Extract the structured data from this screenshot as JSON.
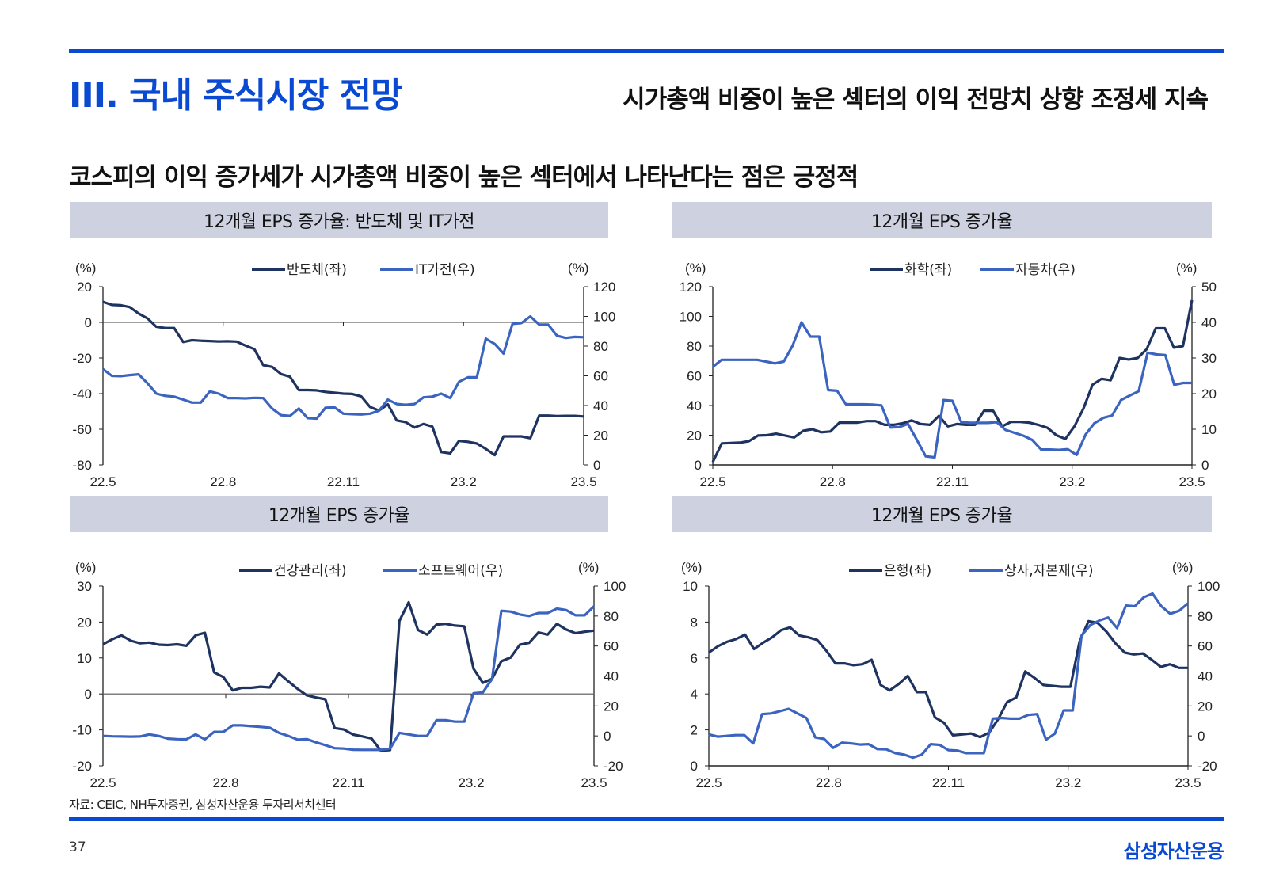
{
  "header": {
    "section_title": "III. 국내 주식시장 전망",
    "section_subtitle": "시가총액 비중이 높은 섹터의 이익 전망치 상향 조정세 지속",
    "headline": "코스피의 이익 증가세가 시가총액 비중이 높은 섹터에서 나타난다는 점은 긍정적"
  },
  "colors": {
    "accent": "#0a49d1",
    "panel": "#cdd1e0",
    "series_dark": "#1f3360",
    "series_light": "#3b63c0",
    "zero_line": "#808080"
  },
  "footer": {
    "source": "자료: CEIC, NH투자증권, 삼성자산운용 투자리서치센터",
    "page_number": "37",
    "brand": "삼성자산운용"
  },
  "chart_data": [
    {
      "type": "line",
      "title": "12개월 EPS 증가율: 반도체 및 IT가전",
      "ylabel_left": "(%)",
      "ylabel_right": "(%)",
      "x_ticks": [
        "22.5",
        "22.8",
        "22.11",
        "23.2",
        "23.5"
      ],
      "ylim_left": [
        -80,
        20
      ],
      "yticks_left": [
        20,
        0,
        -20,
        -40,
        -60,
        -80
      ],
      "ylim_right": [
        0,
        120
      ],
      "yticks_right": [
        120,
        100,
        80,
        60,
        40,
        20,
        0
      ],
      "zero_line": "left",
      "series": [
        {
          "name": "반도체(좌)",
          "axis": "left",
          "color": "dark",
          "values": [
            11.5,
            9.8,
            9.6,
            8.6,
            5,
            2.2,
            -2.5,
            -3.2,
            -3.2,
            -11,
            -10,
            -10.3,
            -10.5,
            -10.7,
            -10.6,
            -10.8,
            -13,
            -15,
            -24,
            -25,
            -29,
            -30.5,
            -38,
            -38,
            -38.2,
            -39,
            -39.5,
            -40,
            -40.2,
            -41.5,
            -47.5,
            -49.5,
            -46,
            -55,
            -56,
            -59,
            -57,
            -58.5,
            -72.8,
            -73.5,
            -66.5,
            -67,
            -68,
            -71,
            -74.5,
            -64,
            -64,
            -64,
            -65,
            -52.3,
            -52.3,
            -52.6,
            -52.5,
            -52.5,
            -52.8
          ]
        },
        {
          "name": "IT가전(우)",
          "axis": "right",
          "color": "light",
          "values": [
            64.5,
            60,
            59.8,
            60.5,
            61,
            55,
            48,
            46.5,
            46,
            44,
            42,
            42,
            49.5,
            48,
            45,
            45,
            44.8,
            45.2,
            45,
            38,
            33.5,
            33,
            38,
            31.5,
            31.2,
            38.5,
            38.8,
            34.5,
            34.2,
            34,
            34.5,
            36.5,
            44,
            41,
            40.5,
            41,
            45.5,
            46,
            48,
            45,
            56,
            59,
            59,
            85,
            81.5,
            75,
            95,
            95.5,
            100,
            94.5,
            94.5,
            87,
            85.5,
            86.2,
            86
          ]
        }
      ]
    },
    {
      "type": "line",
      "title": "12개월 EPS 증가율",
      "ylabel_left": "(%)",
      "ylabel_right": "(%)",
      "x_ticks": [
        "22.5",
        "22.8",
        "22.11",
        "23.2",
        "23.5"
      ],
      "ylim_left": [
        0,
        120
      ],
      "yticks_left": [
        120,
        100,
        80,
        60,
        40,
        20,
        0
      ],
      "ylim_right": [
        0,
        50
      ],
      "yticks_right": [
        50,
        40,
        30,
        20,
        10,
        0
      ],
      "series": [
        {
          "name": "화학(좌)",
          "axis": "left",
          "color": "dark",
          "values": [
            2,
            14.5,
            14.8,
            15,
            16,
            19.8,
            20,
            21,
            19.8,
            18.5,
            23,
            24,
            22,
            22.5,
            28.5,
            28.5,
            28.5,
            29.5,
            29.5,
            27,
            27,
            28,
            30,
            27.5,
            27,
            33,
            26,
            27.5,
            27,
            27,
            36.5,
            36.5,
            26,
            29,
            29,
            28.5,
            27,
            25,
            20,
            17.5,
            26,
            38,
            54,
            58,
            57,
            72,
            71,
            72,
            78,
            92,
            92,
            79,
            80,
            111
          ]
        },
        {
          "name": "자동차(우)",
          "axis": "right",
          "color": "light",
          "values": [
            27.5,
            29.5,
            29.5,
            29.5,
            29.5,
            29.5,
            29,
            28.5,
            29,
            33.5,
            40,
            36,
            36,
            21,
            20.8,
            17,
            17,
            17,
            16.9,
            16.7,
            10.5,
            10.6,
            11.5,
            7,
            2.4,
            2.1,
            18.2,
            18,
            12,
            11.8,
            11.8,
            11.8,
            12,
            9.8,
            9,
            8.2,
            7,
            4.3,
            4.3,
            4.2,
            4.4,
            2.8,
            8.5,
            11.7,
            13.2,
            13.9,
            18.2,
            19.5,
            20.7,
            31.5,
            31,
            30.8,
            22.5,
            23,
            23
          ]
        }
      ]
    },
    {
      "type": "line",
      "title": "12개월 EPS 증가율",
      "ylabel_left": "(%)",
      "ylabel_right": "(%)",
      "x_ticks": [
        "22.5",
        "22.8",
        "22.11",
        "23.2",
        "23.5"
      ],
      "ylim_left": [
        -20,
        30
      ],
      "yticks_left": [
        30,
        20,
        10,
        0,
        -10,
        -20
      ],
      "ylim_right": [
        -20,
        100
      ],
      "yticks_right": [
        100,
        80,
        60,
        40,
        20,
        0,
        -20
      ],
      "zero_line": "left",
      "series": [
        {
          "name": "건강관리(좌)",
          "axis": "left",
          "color": "dark",
          "values": [
            13.8,
            15.2,
            16.3,
            14.8,
            14.1,
            14.3,
            13.7,
            13.6,
            13.8,
            13.4,
            16.3,
            17,
            6,
            4.7,
            1,
            1.7,
            1.7,
            2,
            1.8,
            5.7,
            3.5,
            1.4,
            -0.4,
            -1,
            -1.5,
            -9.5,
            -9.9,
            -11.3,
            -11.8,
            -12.4,
            -15.8,
            -15.6,
            20.3,
            25.5,
            17.8,
            16.5,
            19.3,
            19.5,
            19,
            18.8,
            7,
            3.1,
            4.2,
            9.1,
            10.1,
            13.7,
            14.2,
            17.1,
            16.5,
            19.5,
            17.9,
            16.9,
            17.3,
            17.6
          ]
        },
        {
          "name": "소프트웨어(우)",
          "axis": "right",
          "color": "light",
          "values": [
            0,
            -0.3,
            -0.4,
            -0.5,
            -0.4,
            1,
            0,
            -1.8,
            -2.2,
            -2.3,
            1,
            -2.3,
            2.7,
            2.7,
            7,
            7,
            6.5,
            6,
            5.5,
            2,
            0,
            -2.5,
            -2.2,
            -4.3,
            -6.2,
            -8.2,
            -8.5,
            -9.2,
            -9.3,
            -9.3,
            -9.3,
            -8.5,
            2,
            1,
            0,
            0,
            10.5,
            10.5,
            9.5,
            9.5,
            28.5,
            29,
            38,
            83.5,
            83,
            81,
            80,
            82,
            82,
            85,
            84,
            80.5,
            80.5,
            86.5
          ]
        }
      ]
    },
    {
      "type": "line",
      "title": "12개월 EPS 증가율",
      "ylabel_left": "(%)",
      "ylabel_right": "(%)",
      "x_ticks": [
        "22.5",
        "22.8",
        "22.11",
        "23.2",
        "23.5"
      ],
      "ylim_left": [
        0,
        10
      ],
      "yticks_left": [
        10,
        8,
        6,
        4,
        2,
        0
      ],
      "ylim_right": [
        -20,
        100
      ],
      "yticks_right": [
        100,
        80,
        60,
        40,
        20,
        0,
        -20
      ],
      "series": [
        {
          "name": "은행(좌)",
          "axis": "left",
          "color": "dark",
          "values": [
            6.3,
            6.65,
            6.9,
            7.05,
            7.3,
            6.5,
            6.85,
            7.15,
            7.55,
            7.7,
            7.25,
            7.15,
            7,
            6.4,
            5.7,
            5.7,
            5.6,
            5.65,
            5.9,
            4.5,
            4.2,
            4.55,
            5,
            4.1,
            4.1,
            2.7,
            2.4,
            1.7,
            1.75,
            1.8,
            1.6,
            1.85,
            2.6,
            3.55,
            3.8,
            5.25,
            4.9,
            4.5,
            4.45,
            4.4,
            4.4,
            6.9,
            8.05,
            7.95,
            7.45,
            6.8,
            6.3,
            6.2,
            6.25,
            5.9,
            5.5,
            5.65,
            5.45,
            5.45
          ]
        },
        {
          "name": "상사,자본재(우)",
          "axis": "right",
          "color": "light",
          "values": [
            1,
            -0.5,
            0,
            0.5,
            0.5,
            -5,
            14.5,
            15,
            16.5,
            18,
            15,
            12,
            -1,
            -2,
            -8,
            -4.5,
            -5,
            -5.8,
            -5.5,
            -8.8,
            -9,
            -11.5,
            -12.5,
            -14.5,
            -12.5,
            -5.5,
            -6,
            -9.5,
            -9.8,
            -11.5,
            -11.5,
            -11.5,
            11.5,
            12,
            11.5,
            11.5,
            14,
            14.5,
            -2.5,
            1.5,
            17,
            17,
            67,
            74,
            77,
            79,
            72,
            87,
            86.5,
            92.5,
            95,
            86.5,
            81.5,
            83.5,
            88.5
          ]
        }
      ]
    }
  ]
}
